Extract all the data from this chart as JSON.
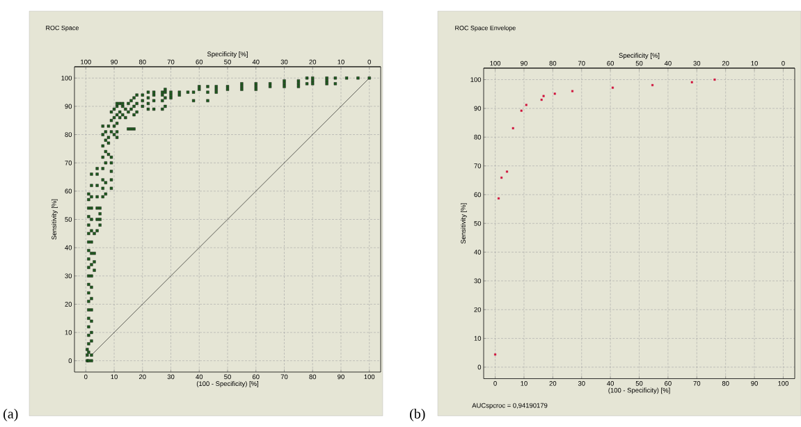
{
  "chart_data": [
    {
      "type": "scatter",
      "title": "ROC Space",
      "xlabel": "(100 - Specificity)  [%]",
      "x2label": "Specificity  [%]",
      "ylabel": "Sensitivity  [%]",
      "annotations": [
        "(a)"
      ],
      "xlim": [
        -4,
        104
      ],
      "ylim": [
        -4,
        104
      ],
      "x2lim": [
        104,
        -4
      ],
      "xticks": [
        0,
        10,
        20,
        30,
        40,
        50,
        60,
        70,
        80,
        90,
        100
      ],
      "yticks": [
        0,
        10,
        20,
        30,
        40,
        50,
        60,
        70,
        80,
        90,
        100
      ],
      "x2ticks": [
        0,
        10,
        20,
        30,
        40,
        50,
        60,
        70,
        80,
        90,
        100
      ],
      "grid": true,
      "series": [
        {
          "type": "scatter",
          "color": "#1f5c1f",
          "marker": "square",
          "x": [
            0.5,
            0.5,
            0.5,
            1,
            1,
            1,
            1,
            1,
            1,
            1,
            1,
            1,
            1,
            1,
            1,
            1,
            1,
            1,
            1,
            1,
            1,
            1,
            1,
            1,
            2,
            2,
            2,
            2,
            2,
            2,
            2,
            2,
            2,
            2,
            2,
            2,
            2,
            2,
            2,
            2,
            2,
            2,
            3,
            3,
            3,
            3,
            4,
            4,
            4,
            4,
            4,
            4,
            4,
            5,
            5,
            5,
            5,
            6,
            6,
            6,
            6,
            6,
            6,
            6,
            6,
            7,
            7,
            7,
            7,
            7,
            7,
            8,
            8,
            8,
            8,
            9,
            9,
            9,
            9,
            9,
            9,
            9,
            9,
            10,
            10,
            10,
            10,
            11,
            11,
            11,
            11,
            11,
            11,
            12,
            12,
            12,
            13,
            13,
            13,
            14,
            14,
            15,
            15,
            15,
            16,
            16,
            16,
            17,
            17,
            17,
            17,
            18,
            18,
            18,
            20,
            20,
            20,
            22,
            22,
            22,
            22,
            24,
            24,
            24,
            24,
            27,
            27,
            27,
            27,
            28,
            28,
            28,
            28,
            30,
            30,
            30,
            33,
            33,
            36,
            38,
            38,
            40,
            40,
            43,
            43,
            43,
            46,
            46,
            46,
            50,
            50,
            55,
            55,
            55,
            60,
            60,
            60,
            65,
            65,
            70,
            70,
            70,
            75,
            75,
            75,
            78,
            78,
            80,
            80,
            80,
            85,
            85,
            85,
            88,
            88,
            92,
            96,
            100
          ],
          "values": [
            0,
            2,
            4,
            0,
            3,
            6,
            9,
            12,
            15,
            18,
            21,
            24,
            27,
            30,
            33,
            36,
            39,
            42,
            45,
            48,
            51,
            54,
            57,
            59,
            0,
            2,
            7,
            10,
            14,
            18,
            22,
            26,
            30,
            34,
            38,
            42,
            46,
            50,
            54,
            58,
            62,
            66,
            32,
            35,
            38,
            45,
            46,
            50,
            54,
            58,
            62,
            66,
            68,
            48,
            50,
            52,
            54,
            58,
            61,
            64,
            68,
            72,
            76,
            80,
            83,
            59,
            63,
            70,
            74,
            78,
            81,
            73,
            77,
            79,
            83,
            61,
            64,
            67,
            70,
            72,
            81,
            85,
            88,
            80,
            83,
            86,
            89,
            79,
            81,
            84,
            87,
            90,
            91,
            86,
            88,
            91,
            87,
            90,
            91,
            86,
            89,
            82,
            88,
            91,
            82,
            89,
            92,
            82,
            87,
            90,
            93,
            88,
            91,
            94,
            90,
            92,
            94,
            89,
            91,
            93,
            95,
            89,
            92,
            94,
            95,
            89,
            92,
            94,
            95,
            90,
            93,
            95,
            96,
            93,
            94,
            95,
            94,
            95,
            95,
            92,
            95,
            96,
            97,
            92,
            95,
            97,
            95,
            96,
            97,
            96,
            97,
            96,
            97,
            98,
            96,
            97,
            98,
            97,
            98,
            97,
            98,
            99,
            97,
            98,
            99,
            98,
            100,
            98,
            99,
            100,
            98,
            99,
            100,
            98,
            100,
            100,
            100,
            100
          ]
        },
        {
          "type": "line",
          "color": "#000000",
          "marker": "none",
          "x": [
            2,
            100
          ],
          "values": [
            2,
            100
          ]
        }
      ]
    },
    {
      "type": "scatter",
      "title": "ROC Space Envelope",
      "xlabel": "(100 - Specificity)  [%]",
      "x2label": "Specificity  [%]",
      "ylabel": "Sensitivity  [%]",
      "annotations": [
        "(b)",
        "AUCspcroc = 0,94190179"
      ],
      "xlim": [
        -4,
        104
      ],
      "ylim": [
        -4,
        104
      ],
      "x2lim": [
        104,
        -4
      ],
      "xticks": [
        0,
        10,
        20,
        30,
        40,
        50,
        60,
        70,
        80,
        90,
        100
      ],
      "yticks": [
        0,
        10,
        20,
        30,
        40,
        50,
        60,
        70,
        80,
        90,
        100
      ],
      "x2ticks": [
        0,
        10,
        20,
        30,
        40,
        50,
        60,
        70,
        80,
        90,
        100
      ],
      "grid": true,
      "series": [
        {
          "type": "scatter",
          "color": "#d0103a",
          "marker": "square",
          "x": [
            0,
            1.2,
            2.2,
            4.1,
            6.2,
            9.1,
            10.8,
            16.1,
            16.8,
            20.7,
            26.8,
            40.8,
            54.6,
            68.3,
            76.2
          ],
          "values": [
            4.4,
            58.7,
            65.9,
            68,
            83.1,
            89.2,
            91.2,
            93,
            94.3,
            95.1,
            96,
            97.2,
            98.1,
            99.1,
            100
          ]
        }
      ]
    }
  ]
}
